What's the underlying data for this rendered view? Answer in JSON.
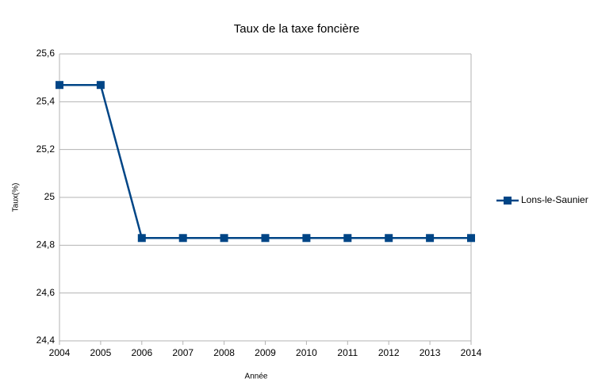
{
  "chart_data": {
    "type": "line",
    "title": "Taux de la taxe foncière",
    "x_label": "Année",
    "y_label": "Taux(%)",
    "x": [
      2004,
      2005,
      2006,
      2007,
      2008,
      2009,
      2010,
      2011,
      2012,
      2013,
      2014
    ],
    "series": [
      {
        "name": "Lons-le-Saunier",
        "color": "#004586",
        "values": [
          25.47,
          25.47,
          24.83,
          24.83,
          24.83,
          24.83,
          24.83,
          24.83,
          24.83,
          24.83,
          24.83
        ]
      }
    ],
    "xlim": [
      2004,
      2014
    ],
    "xticks": [
      2004,
      2005,
      2006,
      2007,
      2008,
      2009,
      2010,
      2011,
      2012,
      2013,
      2014
    ],
    "ylim": [
      24.4,
      25.6
    ],
    "yticks": [
      {
        "value": 24.4,
        "label": "24,4"
      },
      {
        "value": 24.6,
        "label": "24,6"
      },
      {
        "value": 24.8,
        "label": "24,8"
      },
      25,
      {
        "value": 25.2,
        "label": "25,2"
      },
      {
        "value": 25.4,
        "label": "25,4"
      },
      {
        "value": 25.6,
        "label": "25,6"
      }
    ],
    "grid": true,
    "legend": "right"
  }
}
